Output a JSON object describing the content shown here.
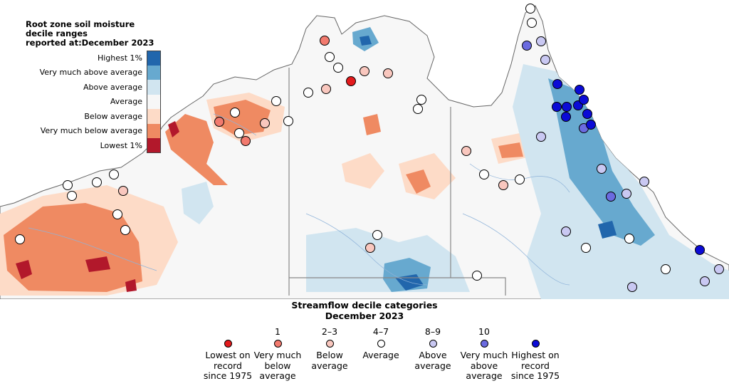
{
  "soil_legend": {
    "title_lines": [
      "Root zone soil moisture",
      "decile ranges",
      "reported at:December 2023"
    ],
    "categories": [
      {
        "label": "Highest 1%",
        "color": "#2166ac"
      },
      {
        "label": "Very much above average",
        "color": "#67a9cf"
      },
      {
        "label": "Above average",
        "color": "#d1e5f0"
      },
      {
        "label": "Average",
        "color": "#f7f7f7"
      },
      {
        "label": "Below average",
        "color": "#fddbc7"
      },
      {
        "label": "Very much below average",
        "color": "#ef8a62"
      },
      {
        "label": "Lowest 1%",
        "color": "#b2182b"
      }
    ]
  },
  "streamflow_legend": {
    "title_lines": [
      "Streamflow decile categories",
      "December 2023"
    ],
    "categories": [
      {
        "num": "",
        "label": "Lowest on\nrecord\nsince 1975",
        "color": "#e31a1c"
      },
      {
        "num": "1",
        "label": "Very much\nbelow\naverage",
        "color": "#f27a6e"
      },
      {
        "num": "2–3",
        "label": "Below\naverage",
        "color": "#f9c7be"
      },
      {
        "num": "4–7",
        "label": "Average",
        "color": "#ffffff"
      },
      {
        "num": "8–9",
        "label": "Above\naverage",
        "color": "#c9c8f2"
      },
      {
        "num": "10",
        "label": "Very much\nabove\naverage",
        "color": "#6b6be0"
      },
      {
        "num": "",
        "label": "Highest on\nrecord\nsince 1975",
        "color": "#0b0bd6"
      }
    ]
  }
}
